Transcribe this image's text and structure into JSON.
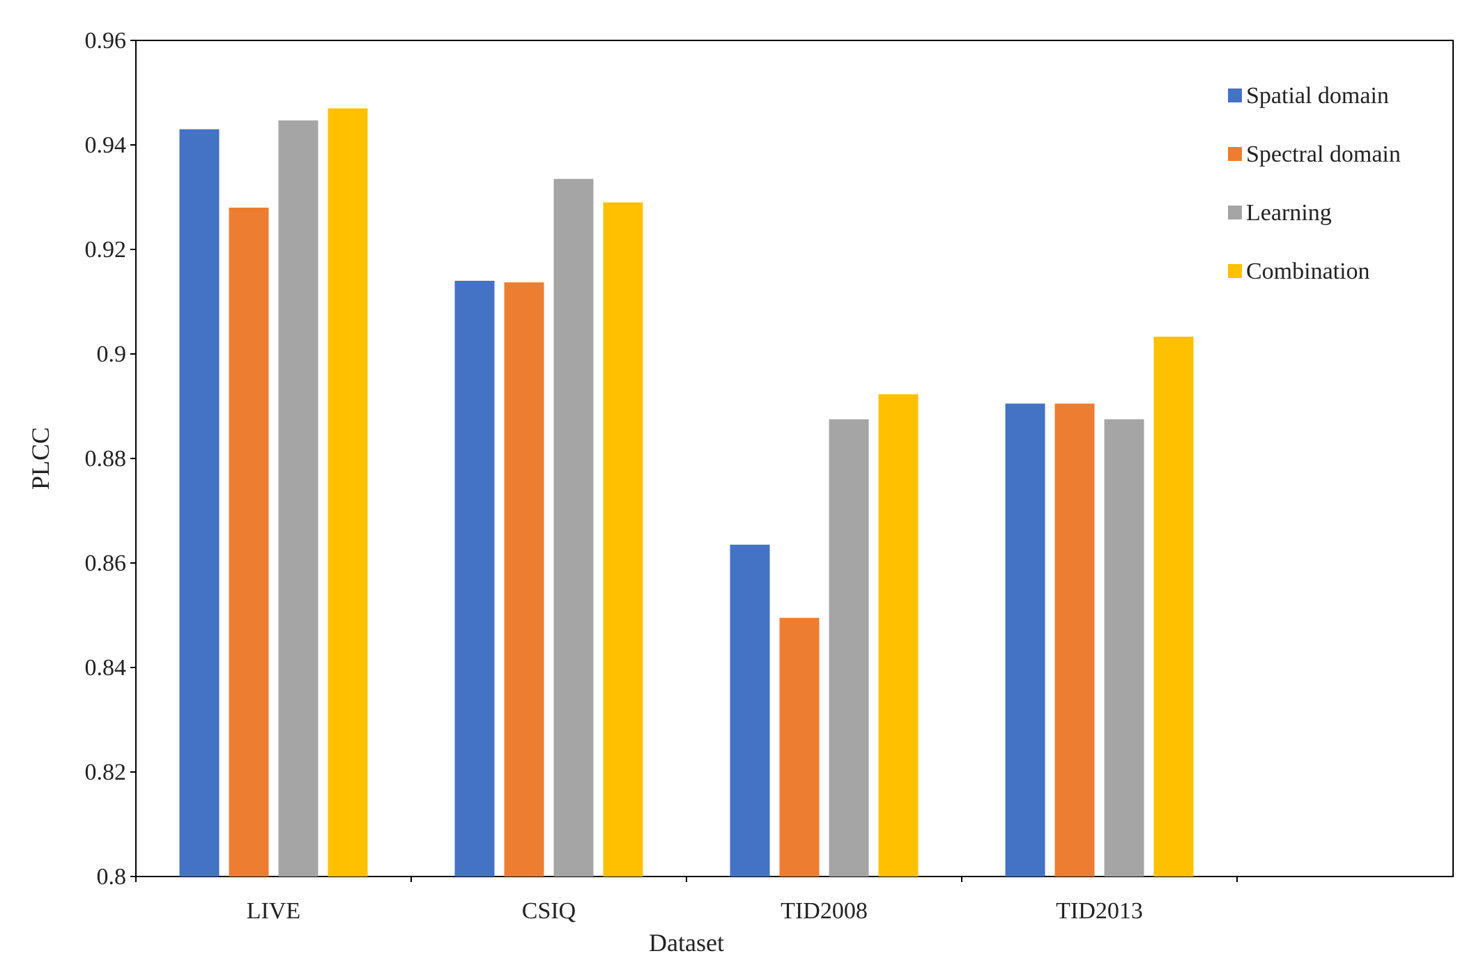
{
  "chart_data": {
    "type": "bar",
    "xlabel": "Dataset",
    "ylabel": "PLCC",
    "ylim": [
      0.8,
      0.96
    ],
    "ytick_step": 0.02,
    "yticks": [
      "0.8",
      "0.82",
      "0.84",
      "0.86",
      "0.88",
      "0.9",
      "0.92",
      "0.94",
      "0.96"
    ],
    "grid": false,
    "legend_position": "top-right",
    "categories": [
      "LIVE",
      "CSIQ",
      "TID2008",
      "TID2013"
    ],
    "series": [
      {
        "name": "Spatial domain",
        "color": "#4472C4",
        "values": [
          0.943,
          0.914,
          0.8635,
          0.8905
        ]
      },
      {
        "name": "Spectral domain",
        "color": "#ED7D31",
        "values": [
          0.928,
          0.9137,
          0.8495,
          0.8905
        ]
      },
      {
        "name": "Learning",
        "color": "#A5A5A5",
        "values": [
          0.9447,
          0.9335,
          0.8875,
          0.8875
        ]
      },
      {
        "name": "Combination",
        "color": "#FFC000",
        "values": [
          0.947,
          0.929,
          0.8923,
          0.9033
        ]
      }
    ]
  }
}
